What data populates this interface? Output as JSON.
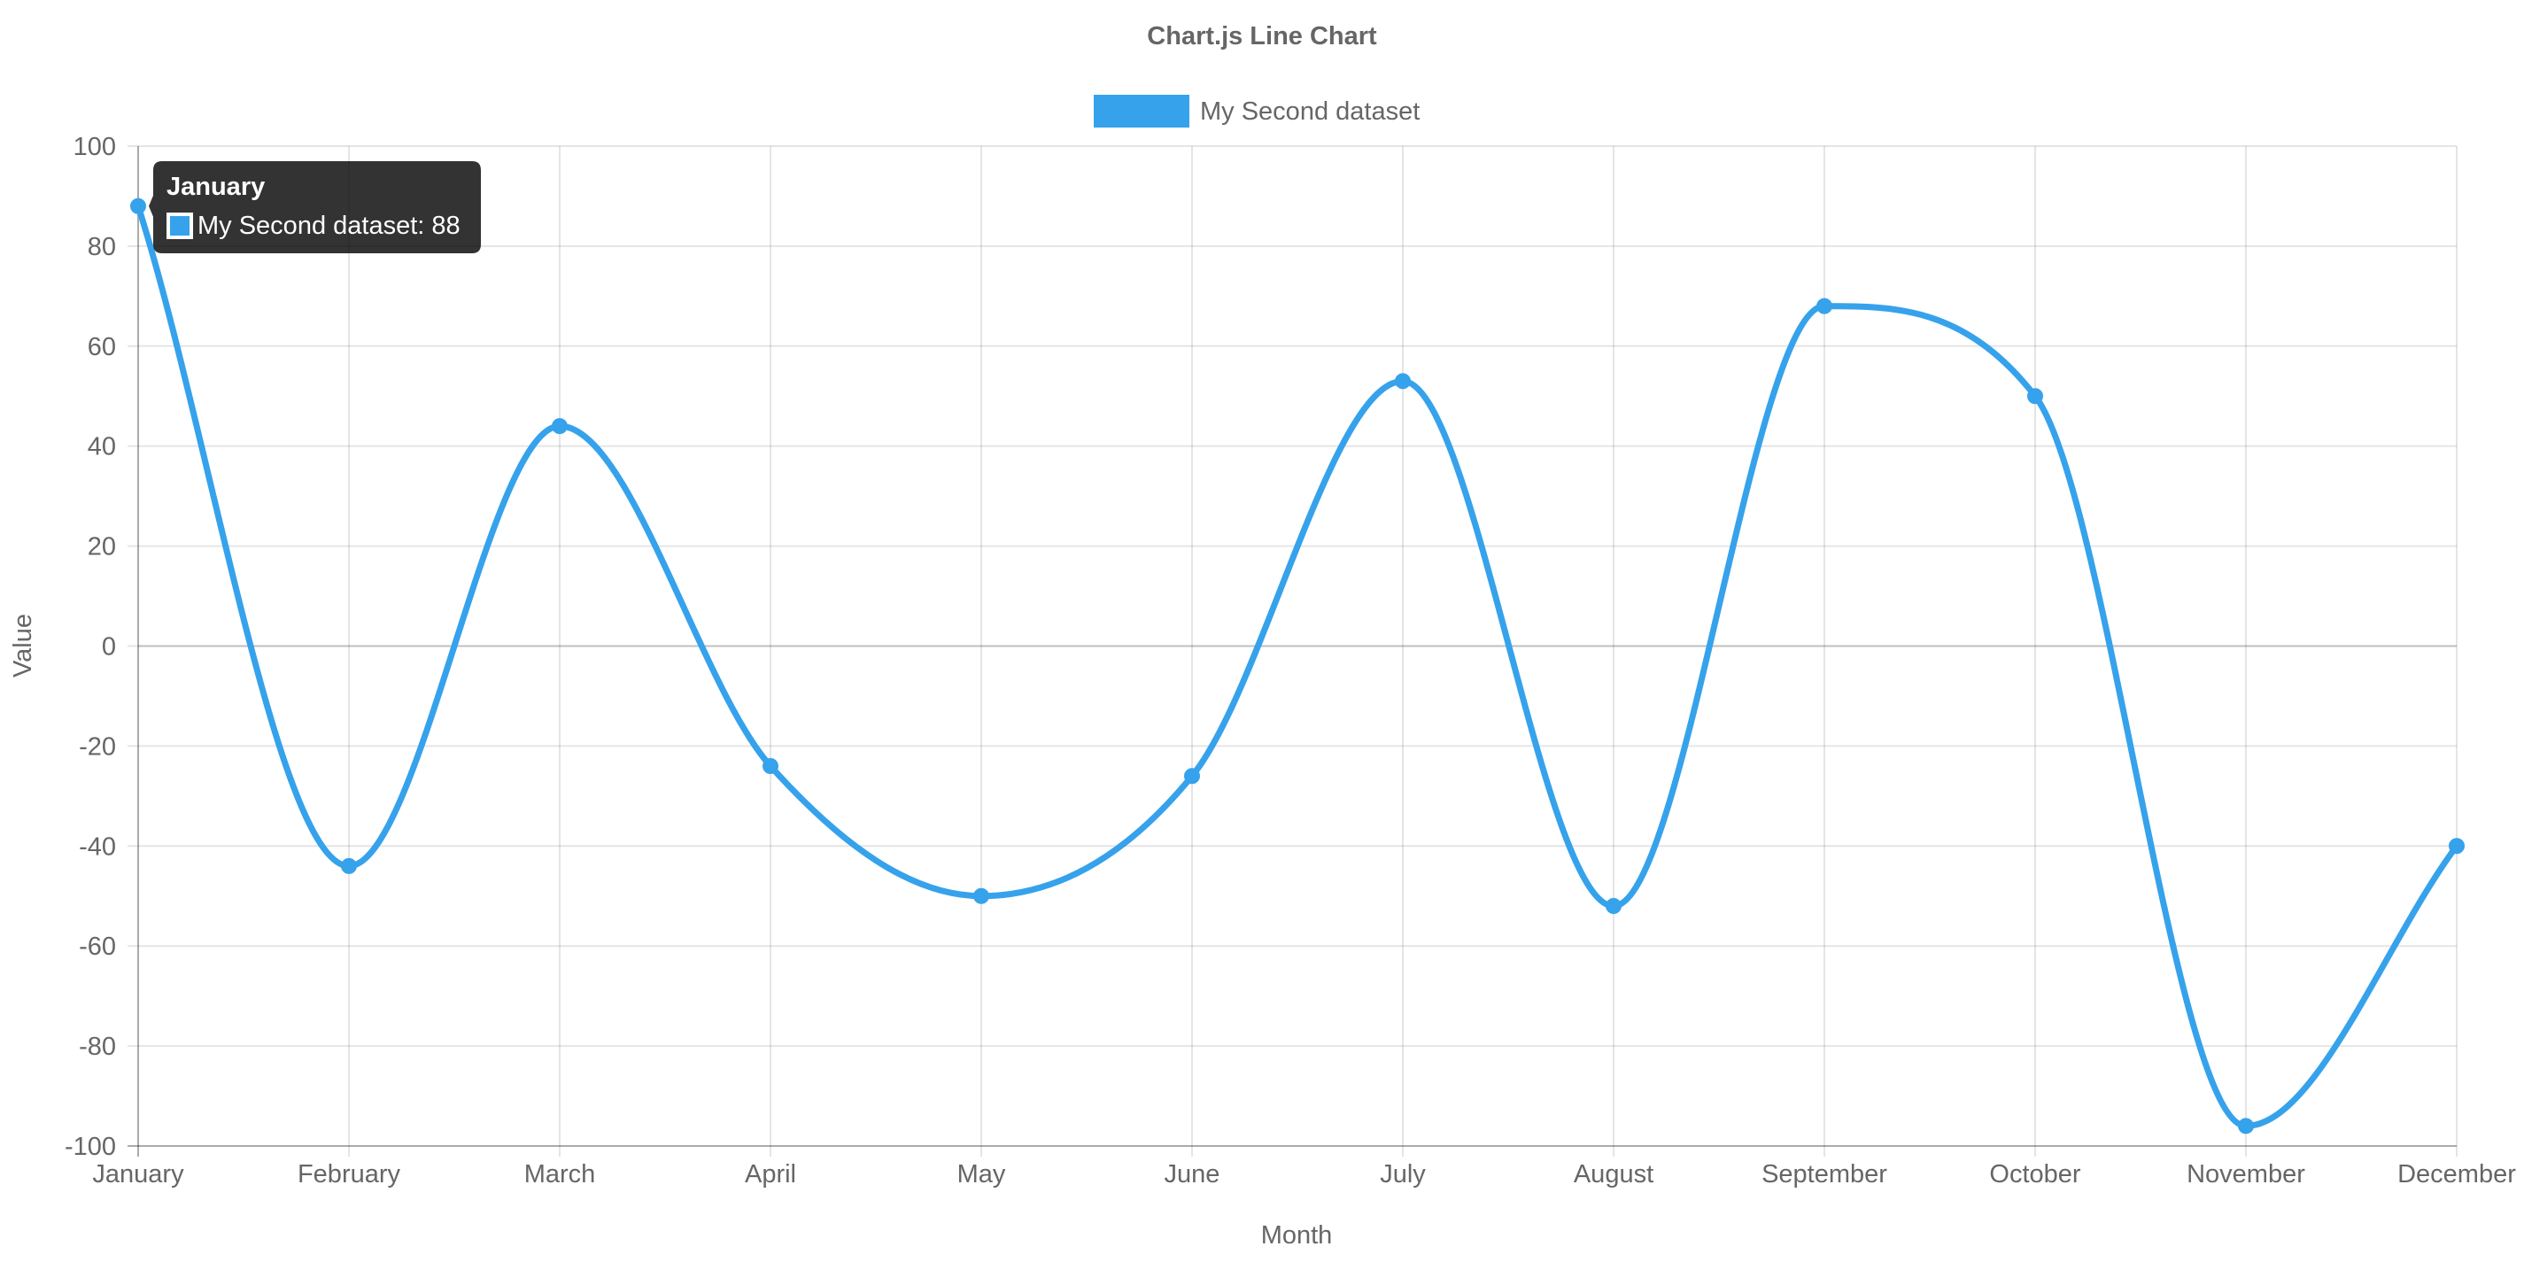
{
  "chart_data": {
    "type": "line",
    "title": "Chart.js Line Chart",
    "xlabel": "Month",
    "ylabel": "Value",
    "categories": [
      "January",
      "February",
      "March",
      "April",
      "May",
      "June",
      "July",
      "August",
      "September",
      "October",
      "November",
      "December"
    ],
    "series": [
      {
        "name": "My Second dataset",
        "values": [
          88,
          -44,
          44,
          -24,
          -50,
          -26,
          53,
          -52,
          68,
          50,
          -96,
          -40
        ],
        "color": "#36a2eb"
      }
    ],
    "ylim": [
      -100,
      100
    ],
    "yticks": [
      "100",
      "80",
      "60",
      "40",
      "20",
      "0",
      "-20",
      "-40",
      "-60",
      "-80",
      "-100"
    ],
    "grid": true,
    "legend_position": "top",
    "tooltip": {
      "title": "January",
      "label": "My Second dataset: 88"
    }
  }
}
